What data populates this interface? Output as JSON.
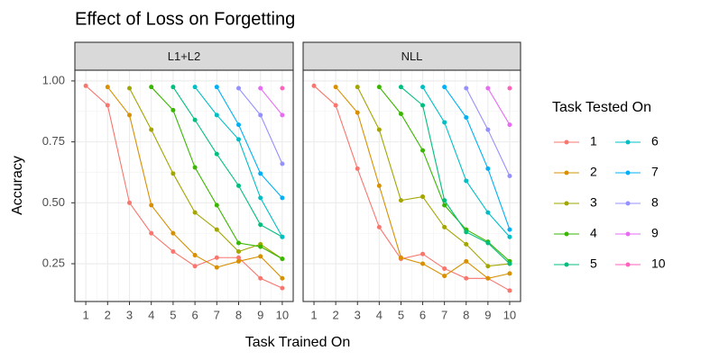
{
  "chart_data": {
    "type": "line",
    "title": "Effect of Loss on Forgetting",
    "x_label": "Task Trained On",
    "y_label": "Accuracy",
    "legend_title": "Task Tested On",
    "x": [
      1,
      2,
      3,
      4,
      5,
      6,
      7,
      8,
      9,
      10
    ],
    "xlim": [
      0.5,
      10.5
    ],
    "ylim": [
      0.095,
      1.044
    ],
    "xticks": [
      1,
      2,
      3,
      4,
      5,
      6,
      7,
      8,
      9,
      10
    ],
    "yticks": [
      {
        "value": 1,
        "label": "1.00"
      },
      0.75,
      {
        "value": 0.5,
        "label": "0.50"
      },
      0.25
    ],
    "grid": true,
    "series": [
      {
        "name": "1",
        "color": "#F8766D"
      },
      {
        "name": "2",
        "color": "#D89000"
      },
      {
        "name": "3",
        "color": "#A3A500"
      },
      {
        "name": "4",
        "color": "#39B600"
      },
      {
        "name": "5",
        "color": "#00BF7D"
      },
      {
        "name": "6",
        "color": "#00BFC4"
      },
      {
        "name": "7",
        "color": "#00B0F6"
      },
      {
        "name": "8",
        "color": "#9590FF"
      },
      {
        "name": "9",
        "color": "#E76BF3"
      },
      {
        "name": "10",
        "color": "#FF62BC"
      }
    ],
    "facets": [
      {
        "title": "L1+L2",
        "values": [
          [
            0.98,
            0.9,
            0.5,
            0.375,
            0.3,
            0.24,
            0.275,
            0.275,
            0.19,
            0.15
          ],
          [
            null,
            0.975,
            0.86,
            0.49,
            0.375,
            0.285,
            0.235,
            0.26,
            0.28,
            0.19
          ],
          [
            null,
            null,
            0.97,
            0.8,
            0.62,
            0.46,
            0.39,
            0.3,
            0.33,
            0.27
          ],
          [
            null,
            null,
            null,
            0.975,
            0.88,
            0.645,
            0.49,
            0.335,
            0.32,
            0.27
          ],
          [
            null,
            null,
            null,
            null,
            0.975,
            0.84,
            0.7,
            0.57,
            0.41,
            0.36
          ],
          [
            null,
            null,
            null,
            null,
            null,
            0.975,
            0.86,
            0.76,
            0.52,
            0.36
          ],
          [
            null,
            null,
            null,
            null,
            null,
            null,
            0.975,
            0.82,
            0.62,
            0.52
          ],
          [
            null,
            null,
            null,
            null,
            null,
            null,
            null,
            0.97,
            0.86,
            0.66
          ],
          [
            null,
            null,
            null,
            null,
            null,
            null,
            null,
            null,
            0.97,
            0.86
          ],
          [
            null,
            null,
            null,
            null,
            null,
            null,
            null,
            null,
            null,
            0.97
          ]
        ]
      },
      {
        "title": "NLL",
        "values": [
          [
            0.98,
            0.9,
            0.64,
            0.4,
            0.27,
            0.29,
            0.23,
            0.19,
            0.19,
            0.14
          ],
          [
            null,
            0.975,
            0.87,
            0.57,
            0.275,
            0.25,
            0.2,
            0.26,
            0.19,
            0.21
          ],
          [
            null,
            null,
            0.975,
            0.8,
            0.51,
            0.525,
            0.4,
            0.33,
            0.24,
            0.25
          ],
          [
            null,
            null,
            null,
            0.975,
            0.865,
            0.715,
            0.49,
            0.39,
            0.34,
            0.26
          ],
          [
            null,
            null,
            null,
            null,
            0.975,
            0.9,
            0.51,
            0.38,
            0.335,
            0.25
          ],
          [
            null,
            null,
            null,
            null,
            null,
            0.975,
            0.83,
            0.59,
            0.46,
            0.36
          ],
          [
            null,
            null,
            null,
            null,
            null,
            null,
            0.975,
            0.85,
            0.64,
            0.39
          ],
          [
            null,
            null,
            null,
            null,
            null,
            null,
            null,
            0.97,
            0.8,
            0.61
          ],
          [
            null,
            null,
            null,
            null,
            null,
            null,
            null,
            null,
            0.97,
            0.82
          ],
          [
            null,
            null,
            null,
            null,
            null,
            null,
            null,
            null,
            null,
            0.97
          ]
        ]
      }
    ]
  }
}
